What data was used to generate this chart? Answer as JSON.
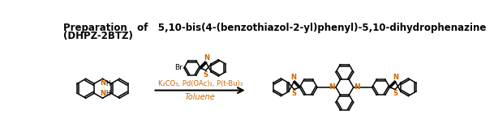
{
  "title_line1": "Preparation   of   5,10-bis(4-(benzothiazol-2-yl)phenyl)-5,10-dihydrophenazine",
  "title_line2": "(DHPZ-2BTZ)",
  "reagents_line1": "K₂CO₃, Pd(OAc)₂, P(t-Bu)₃",
  "reagents_line2": "Toluene",
  "reagents_color": "#cc6600",
  "N_color": "#cc6600",
  "S_color": "#cc6600",
  "title_color": "#000000",
  "bg_color": "#ffffff",
  "fig_width": 6.09,
  "fig_height": 1.73,
  "dpi": 100
}
